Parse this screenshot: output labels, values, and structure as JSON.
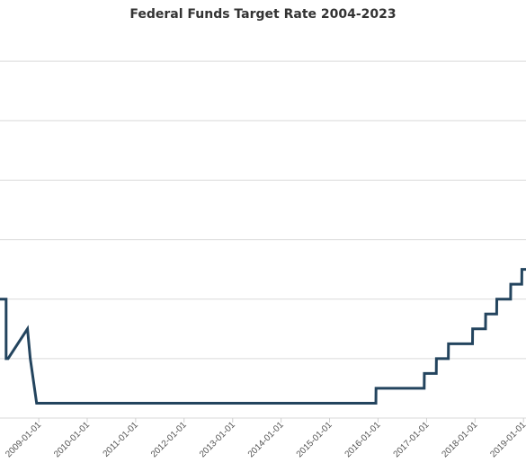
{
  "chart_data": {
    "type": "line",
    "title": "Federal Funds Target Rate 2004-2023",
    "xlabel": "",
    "ylabel": "",
    "x_tick_labels": [
      "2009-01-01",
      "2010-01-01",
      "2011-01-01",
      "2012-01-01",
      "2013-01-01",
      "2014-01-01",
      "2015-01-01",
      "2016-01-01",
      "2017-01-01",
      "2018-01-01",
      "2019-01-01"
    ],
    "x_range": [
      "2008-03-15",
      "2019-01-20"
    ],
    "ylim": [
      0,
      7
    ],
    "grid": true,
    "color": "#23445e",
    "series": [
      {
        "points": [
          [
            "2008-03-15",
            2.0
          ],
          [
            "2008-04-30",
            2.0
          ],
          [
            "2008-04-30",
            1.0
          ],
          [
            "2008-05-15",
            1.0
          ],
          [
            "2008-05-15",
            1.0
          ],
          [
            "2008-10-08",
            1.5
          ],
          [
            "2008-10-29",
            1.0
          ],
          [
            "2008-12-16",
            0.25
          ],
          [
            "2015-12-16",
            0.25
          ],
          [
            "2015-12-17",
            0.5
          ],
          [
            "2016-12-14",
            0.5
          ],
          [
            "2016-12-15",
            0.75
          ],
          [
            "2017-03-15",
            0.75
          ],
          [
            "2017-03-16",
            1.0
          ],
          [
            "2017-06-14",
            1.0
          ],
          [
            "2017-06-15",
            1.25
          ],
          [
            "2017-12-13",
            1.25
          ],
          [
            "2017-12-14",
            1.5
          ],
          [
            "2018-03-21",
            1.5
          ],
          [
            "2018-03-22",
            1.75
          ],
          [
            "2018-06-13",
            1.75
          ],
          [
            "2018-06-14",
            2.0
          ],
          [
            "2018-09-26",
            2.0
          ],
          [
            "2018-09-27",
            2.25
          ],
          [
            "2018-12-19",
            2.25
          ],
          [
            "2018-12-20",
            2.5
          ],
          [
            "2019-01-20",
            2.5
          ]
        ]
      }
    ]
  }
}
